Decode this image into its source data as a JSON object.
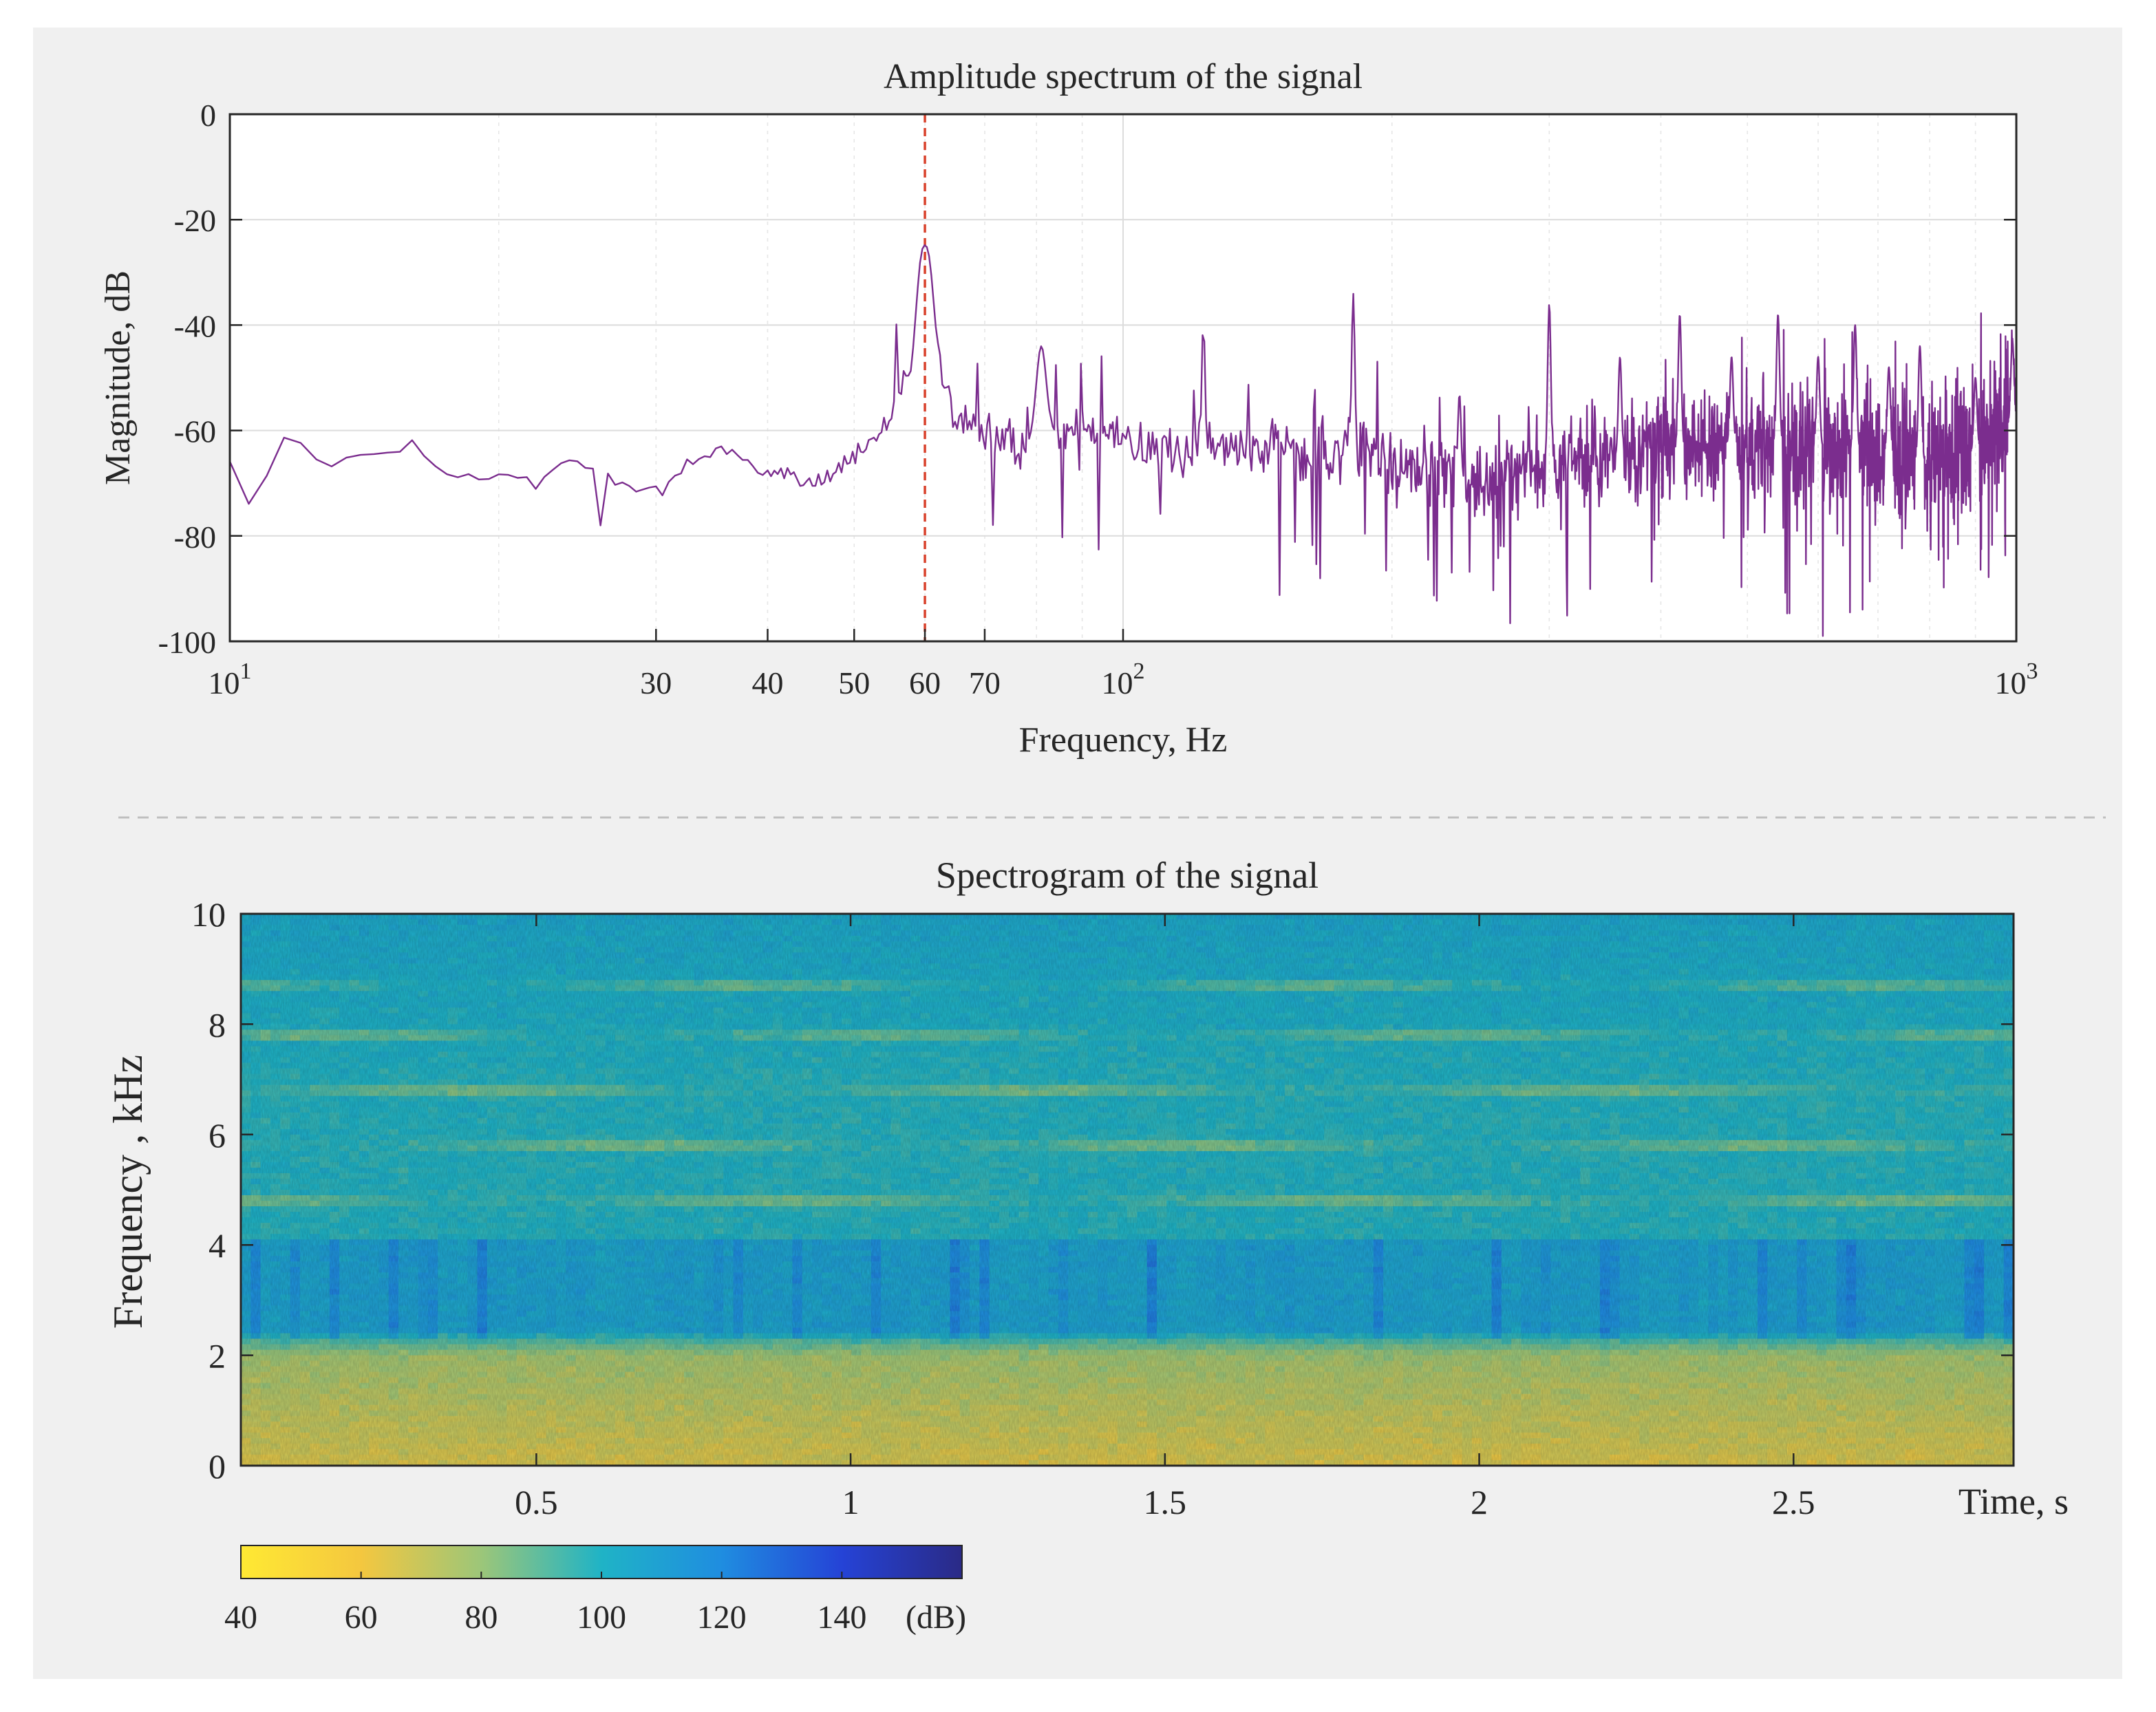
{
  "chart_data": [
    {
      "type": "line",
      "title": "Amplitude spectrum of the signal",
      "xlabel": "Frequency, Hz",
      "ylabel": "Magnitude, dB",
      "xscale": "log",
      "xlim": [
        10,
        1000
      ],
      "ylim": [
        -100,
        0
      ],
      "yticks": [
        0,
        -20,
        -40,
        -60,
        -80,
        -100
      ],
      "xtick_labels": [
        {
          "value": 10,
          "base": "10",
          "exp": "1"
        },
        {
          "value": 30,
          "text": "30"
        },
        {
          "value": 40,
          "text": "40"
        },
        {
          "value": 50,
          "text": "50"
        },
        {
          "value": 60,
          "text": "60"
        },
        {
          "value": 70,
          "text": "70"
        },
        {
          "value": 100,
          "base": "10",
          "exp": "2"
        },
        {
          "value": 1000,
          "base": "10",
          "exp": "3"
        }
      ],
      "grid": true,
      "marker_line": {
        "x": 60,
        "style": "dashed",
        "color": "#d9412b"
      },
      "series": [
        {
          "color": "#7b2d8e",
          "baseline_points": [
            [
              10,
              -64
            ],
            [
              10.6,
              -75
            ],
            [
              11.5,
              -62
            ],
            [
              12.5,
              -65
            ],
            [
              14,
              -66
            ],
            [
              16,
              -63
            ],
            [
              18,
              -70
            ],
            [
              20,
              -68
            ],
            [
              22,
              -70
            ],
            [
              24,
              -66
            ],
            [
              27,
              -68
            ],
            [
              30,
              -72
            ],
            [
              33,
              -66
            ],
            [
              36,
              -63
            ],
            [
              40,
              -68
            ],
            [
              45,
              -70
            ],
            [
              50,
              -65
            ],
            [
              55,
              -58
            ],
            [
              58,
              -48
            ],
            [
              60,
              -25
            ],
            [
              62,
              -45
            ],
            [
              65,
              -58
            ],
            [
              70,
              -60
            ],
            [
              75,
              -64
            ],
            [
              80,
              -62
            ],
            [
              90,
              -58
            ],
            [
              100,
              -62
            ],
            [
              120,
              -64
            ],
            [
              150,
              -63
            ],
            [
              180,
              -64
            ],
            [
              200,
              -66
            ],
            [
              250,
              -70
            ],
            [
              300,
              -66
            ],
            [
              400,
              -64
            ],
            [
              500,
              -62
            ],
            [
              600,
              -63
            ],
            [
              700,
              -64
            ],
            [
              800,
              -66
            ],
            [
              900,
              -64
            ],
            [
              950,
              -60
            ],
            [
              1000,
              -58
            ]
          ],
          "peaks": [
            [
              60,
              -25
            ],
            [
              81,
              -44
            ],
            [
              123,
              -39
            ],
            [
              181,
              -34
            ],
            [
              238,
              -53
            ],
            [
              300,
              -36
            ],
            [
              360,
              -46
            ],
            [
              420,
              -38
            ],
            [
              480,
              -46
            ],
            [
              541,
              -38
            ],
            [
              600,
              -46
            ],
            [
              660,
              -40
            ],
            [
              720,
              -48
            ],
            [
              780,
              -44
            ],
            [
              900,
              -50
            ],
            [
              990,
              -43
            ]
          ]
        }
      ]
    },
    {
      "type": "heatmap",
      "title": "Spectrogram of the signal",
      "xlabel": "Time, s",
      "ylabel": "Frequency ,  kHz",
      "xlim": [
        0.03,
        2.85
      ],
      "ylim": [
        0,
        10
      ],
      "xticks": [
        0.5,
        1,
        1.5,
        2,
        2.5
      ],
      "xtick_labels": [
        "0.5",
        "1",
        "1.5",
        "2",
        "2.5"
      ],
      "yticks": [
        0,
        2,
        4,
        6,
        8,
        10
      ],
      "ytick_labels": [
        "0",
        "2",
        "4",
        "6",
        "8",
        "10"
      ],
      "harmonic_bands_khz": [
        4.8,
        5.8,
        6.8,
        7.8,
        8.7
      ],
      "colorbar": {
        "unit": "(dB)",
        "range": [
          40,
          160
        ],
        "ticks": [
          40,
          60,
          80,
          100,
          120,
          140
        ],
        "tick_labels": [
          "40",
          "60",
          "80",
          "100",
          "120",
          "140"
        ],
        "colormap": [
          "#ffe933",
          "#f4c73f",
          "#9cc679",
          "#1fb3c6",
          "#1f8de0",
          "#2543d6",
          "#2a2a86"
        ]
      }
    }
  ],
  "colors": {
    "panel_background": "#f0f0f0",
    "axes_background": "#ffffff",
    "spectrum_line": "#7b2d8e",
    "marker_line": "#d9412b",
    "separator": "#bfbfbf"
  }
}
